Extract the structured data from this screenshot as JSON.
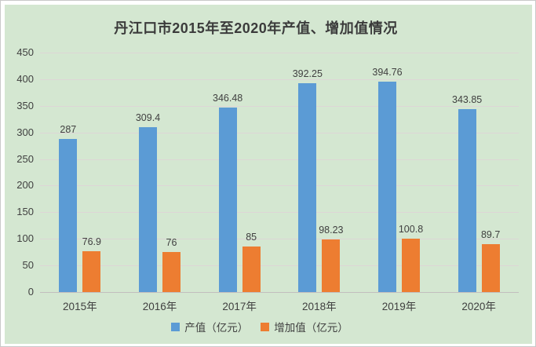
{
  "title": "丹江口市2015年至2020年产值、增加值情况",
  "chart_data": {
    "type": "bar",
    "title": "丹江口市2015年至2020年产值、增加值情况",
    "categories": [
      "2015年",
      "2016年",
      "2017年",
      "2018年",
      "2019年",
      "2020年"
    ],
    "series": [
      {
        "name": "产值（亿元）",
        "color": "#5b9bd5",
        "values": [
          287,
          309.4,
          346.48,
          392.25,
          394.76,
          343.85
        ],
        "labels": [
          "287",
          "309.4",
          "346.48",
          "392.25",
          "394.76",
          "343.85"
        ]
      },
      {
        "name": "增加值（亿元）",
        "color": "#ed7d31",
        "values": [
          76.9,
          76,
          85,
          98.23,
          100.8,
          89.7
        ],
        "labels": [
          "76.9",
          "76",
          "85",
          "98.23",
          "100.8",
          "89.7"
        ]
      }
    ],
    "ylim": [
      0,
      450
    ],
    "yticks": [
      0,
      50,
      100,
      150,
      200,
      250,
      300,
      350,
      400,
      450
    ],
    "grid": true,
    "legend_position": "bottom",
    "colors": {
      "background": "#d4e7d1",
      "page": "#ffffff",
      "border": "#c9c9c9",
      "gridline": "#ddd6d6",
      "axis_line": "#c2bebe",
      "text": "#404040",
      "title_text": "#3b3b3b"
    }
  }
}
